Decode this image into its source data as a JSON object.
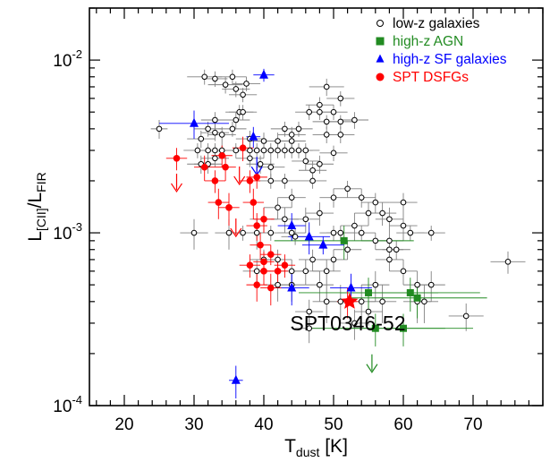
{
  "chart_data": {
    "type": "scatter",
    "xlabel": "T",
    "xlabel_sub": "dust",
    "xlabel_unit": " [K]",
    "ylabel_main": "L",
    "ylabel_sub1": "[CII]",
    "ylabel_mid": "/L",
    "ylabel_sub2": "FIR",
    "xlim": [
      15,
      80
    ],
    "ylim": [
      0.0001,
      0.02
    ],
    "yscale": "log",
    "x_ticks": [
      {
        "value": 20,
        "label": "20"
      },
      {
        "value": 30,
        "label": "30"
      },
      {
        "value": 40,
        "label": "40"
      },
      {
        "value": 50,
        "label": "50"
      },
      {
        "value": 60,
        "label": "60"
      },
      {
        "value": 70,
        "label": "70"
      }
    ],
    "y_ticks": [
      {
        "value": 0.0001,
        "base": "10",
        "exp": "-4"
      },
      {
        "value": 0.001,
        "base": "10",
        "exp": "-3"
      },
      {
        "value": 0.01,
        "base": "10",
        "exp": "-2"
      }
    ],
    "legend_position": "top-right",
    "annotation": {
      "text": "SPT0346-52",
      "x": 52.3,
      "y": 0.0003
    },
    "series": [
      {
        "name": "low-z galaxies",
        "marker": "open-circle",
        "color": "#000000",
        "errcolor": "#808080",
        "points": [
          [
            25,
            0.004,
            1.2,
            0.0005
          ],
          [
            31.5,
            0.008,
            2.5,
            0.0008
          ],
          [
            33,
            0.0078,
            1.8,
            0.0008
          ],
          [
            34.5,
            0.0072,
            2.5,
            0.0008
          ],
          [
            35.5,
            0.008,
            2,
            0.0008
          ],
          [
            36,
            0.0068,
            2,
            0.0007
          ],
          [
            37,
            0.0063,
            2,
            0.0006
          ],
          [
            37.5,
            0.0073,
            2,
            0.0007
          ],
          [
            36.5,
            0.005,
            2,
            0.0005
          ],
          [
            37,
            0.005,
            2,
            0.0005
          ],
          [
            36,
            0.0045,
            2,
            0.0005
          ],
          [
            33,
            0.0045,
            2,
            0.0005
          ],
          [
            35.5,
            0.004,
            2,
            0.0004
          ],
          [
            33,
            0.0038,
            2,
            0.0004
          ],
          [
            34,
            0.0037,
            2,
            0.0004
          ],
          [
            32,
            0.004,
            2,
            0.0004
          ],
          [
            31,
            0.0035,
            2,
            0.0004
          ],
          [
            30.5,
            0.003,
            2,
            0.0003
          ],
          [
            32,
            0.003,
            2,
            0.0003
          ],
          [
            33,
            0.003,
            2,
            0.0003
          ],
          [
            34,
            0.003,
            2,
            0.0003
          ],
          [
            33,
            0.0027,
            2,
            0.0003
          ],
          [
            32,
            0.0025,
            2,
            0.0003
          ],
          [
            31,
            0.0025,
            2,
            0.0003
          ],
          [
            36,
            0.003,
            2,
            0.0003
          ],
          [
            38,
            0.003,
            2,
            0.0003
          ],
          [
            39,
            0.003,
            2,
            0.0003
          ],
          [
            40,
            0.003,
            2,
            0.0003
          ],
          [
            41,
            0.003,
            2,
            0.0003
          ],
          [
            42,
            0.003,
            2,
            0.0003
          ],
          [
            43,
            0.003,
            2,
            0.0003
          ],
          [
            44,
            0.003,
            2,
            0.0003
          ],
          [
            45,
            0.003,
            2,
            0.0003
          ],
          [
            46,
            0.003,
            2,
            0.0003
          ],
          [
            38,
            0.0035,
            2,
            0.0004
          ],
          [
            40,
            0.0034,
            2,
            0.0004
          ],
          [
            42,
            0.0034,
            2,
            0.0004
          ],
          [
            44,
            0.0034,
            2,
            0.0004
          ],
          [
            43,
            0.004,
            2,
            0.0004
          ],
          [
            44,
            0.0037,
            2,
            0.0004
          ],
          [
            45,
            0.004,
            2,
            0.0004
          ],
          [
            46.5,
            0.005,
            2,
            0.0005
          ],
          [
            48,
            0.005,
            2,
            0.0005
          ],
          [
            50,
            0.005,
            2,
            0.0005
          ],
          [
            49,
            0.0044,
            2,
            0.0004
          ],
          [
            51,
            0.0044,
            2,
            0.0004
          ],
          [
            53,
            0.0045,
            2,
            0.0005
          ],
          [
            49,
            0.0037,
            2,
            0.0004
          ],
          [
            51,
            0.0037,
            2,
            0.0004
          ],
          [
            50,
            0.0029,
            2,
            0.0003
          ],
          [
            48,
            0.0025,
            2,
            0.0003
          ],
          [
            47,
            0.0023,
            2,
            0.0003
          ],
          [
            48,
            0.0055,
            2,
            0.0006
          ],
          [
            49,
            0.007,
            2.5,
            0.0008
          ],
          [
            51,
            0.006,
            2,
            0.0006
          ],
          [
            46,
            0.0026,
            2,
            0.0003
          ],
          [
            47,
            0.002,
            2,
            0.0002
          ],
          [
            38,
            0.0027,
            2,
            0.0003
          ],
          [
            39.5,
            0.0025,
            2,
            0.0003
          ],
          [
            41,
            0.0024,
            2,
            0.0003
          ],
          [
            41,
            0.002,
            2,
            0.0002
          ],
          [
            43,
            0.002,
            2,
            0.0002
          ],
          [
            44,
            0.0016,
            2,
            0.0002
          ],
          [
            42,
            0.0014,
            2,
            0.0002
          ],
          [
            40,
            0.0012,
            2,
            0.0002
          ],
          [
            39,
            0.001,
            2,
            0.0002
          ],
          [
            41,
            0.001,
            2,
            0.0001
          ],
          [
            43,
            0.0012,
            2,
            0.0002
          ],
          [
            44,
            0.001,
            2,
            0.0001
          ],
          [
            46,
            0.0012,
            2,
            0.0002
          ],
          [
            48,
            0.0013,
            2,
            0.0002
          ],
          [
            50,
            0.0016,
            2,
            0.0002
          ],
          [
            52,
            0.0018,
            2,
            0.0002
          ],
          [
            54,
            0.0016,
            2,
            0.0002
          ],
          [
            56,
            0.0015,
            2,
            0.0002
          ],
          [
            55,
            0.0013,
            2,
            0.0002
          ],
          [
            57,
            0.0013,
            2,
            0.0002
          ],
          [
            58,
            0.0012,
            2,
            0.0002
          ],
          [
            60,
            0.0011,
            2,
            0.0002
          ],
          [
            61,
            0.001,
            2,
            0.0001
          ],
          [
            53,
            0.0011,
            2,
            0.0002
          ],
          [
            54,
            0.001,
            2,
            0.0001
          ],
          [
            51,
            0.001,
            2,
            0.0001
          ],
          [
            56,
            0.0009,
            2,
            0.0001
          ],
          [
            58,
            0.0008,
            2,
            0.0001
          ],
          [
            59,
            0.0008,
            2,
            0.0001
          ],
          [
            52,
            0.0008,
            2,
            0.0001
          ],
          [
            50,
            0.0007,
            2,
            0.0001
          ],
          [
            49,
            0.0006,
            2,
            0.0001
          ],
          [
            47,
            0.0007,
            2,
            0.0001
          ],
          [
            46,
            0.0006,
            2,
            0.0001
          ],
          [
            48,
            0.0005,
            2,
            0.0001
          ],
          [
            49,
            0.0004,
            2,
            0.0001
          ],
          [
            51,
            0.0004,
            2,
            0.0001
          ],
          [
            54,
            0.0004,
            2,
            0.0001
          ],
          [
            56,
            0.0005,
            2,
            0.0001
          ],
          [
            58,
            0.0007,
            2,
            0.0001
          ],
          [
            60,
            0.0006,
            2,
            0.0001
          ],
          [
            62,
            0.0005,
            2,
            0.0001
          ],
          [
            64,
            0.0005,
            2,
            0.0001
          ],
          [
            63,
            0.0004,
            2,
            0.0001
          ],
          [
            62,
            0.0004,
            2,
            0.0001
          ],
          [
            64,
            0.001,
            2,
            0.0001
          ],
          [
            69,
            0.00033,
            2.5,
            6e-05
          ],
          [
            75,
            0.00068,
            2.5,
            0.0001
          ],
          [
            57,
            0.0004,
            2,
            0.0001
          ],
          [
            55,
            0.00035,
            2,
            6e-05
          ],
          [
            53,
            0.0003,
            2,
            6e-05
          ],
          [
            46.5,
            0.00035,
            2,
            6e-05
          ],
          [
            46.5,
            0.00028,
            2,
            5e-05
          ],
          [
            39,
            0.0006,
            2,
            0.0001
          ],
          [
            40,
            0.0007,
            2,
            0.0001
          ],
          [
            42,
            0.0007,
            2,
            0.0001
          ],
          [
            44,
            0.0006,
            2,
            0.0001
          ],
          [
            30,
            0.001,
            2,
            0.0002
          ],
          [
            35,
            0.001,
            2,
            0.0002
          ],
          [
            37,
            0.001,
            2,
            0.0001
          ],
          [
            44.5,
            0.00095,
            2,
            0.0001
          ],
          [
            42,
            0.0005,
            2,
            0.0001
          ],
          [
            44,
            0.0005,
            2,
            0.0001
          ],
          [
            50,
            0.001,
            2,
            0.0001
          ],
          [
            60,
            0.0015,
            2,
            0.0002
          ],
          [
            58,
            0.0009,
            2,
            0.0001
          ]
        ]
      },
      {
        "name": "high-z AGN",
        "marker": "filled-square",
        "color": "#228b22",
        "errcolor": "#228b22",
        "points": [
          [
            51.5,
            0.0009,
            10,
            0.0002
          ],
          [
            55,
            0.00045,
            10,
            0.0001
          ],
          [
            61,
            0.00045,
            10,
            0.0001
          ],
          [
            62,
            0.00042,
            10,
            0.0001
          ],
          [
            56,
            0.00028,
            10,
            6e-05
          ],
          [
            60,
            0.00028,
            10,
            6e-05
          ]
        ],
        "upper_limits": [
          [
            55.5,
            0.00018
          ]
        ]
      },
      {
        "name": "high-z SF galaxies",
        "marker": "filled-triangle",
        "color": "#0000ff",
        "errcolor": "#0000ff",
        "points": [
          [
            30,
            0.0043,
            5,
            0.0008
          ],
          [
            40,
            0.0082,
            1.5,
            0.0007
          ],
          [
            38.5,
            0.0036,
            1,
            0.0005
          ],
          [
            44,
            0.0011,
            2,
            0.0002
          ],
          [
            46.5,
            0.00095,
            3,
            0.0002
          ],
          [
            48.5,
            0.00085,
            3,
            0.0001
          ],
          [
            44,
            0.00048,
            2.5,
            0.0001
          ],
          [
            52.5,
            0.00048,
            3,
            0.0001
          ],
          [
            36,
            0.00014,
            1,
            3e-05
          ]
        ],
        "upper_limits": [
          [
            39,
            0.0025
          ]
        ]
      },
      {
        "name": "SPT DSFGs",
        "marker": "filled-circle",
        "color": "#ff0000",
        "errcolor": "#ff0000",
        "points": [
          [
            27.5,
            0.0027,
            1.5,
            0.0004
          ],
          [
            31.5,
            0.0024,
            1.5,
            0.0004
          ],
          [
            33,
            0.002,
            1.5,
            0.0003
          ],
          [
            34,
            0.0028,
            1.5,
            0.0004
          ],
          [
            34.5,
            0.0024,
            1.5,
            0.0004
          ],
          [
            33.5,
            0.0015,
            1.5,
            0.0003
          ],
          [
            35,
            0.0014,
            1.5,
            0.0003
          ],
          [
            37,
            0.0031,
            1.5,
            0.0005
          ],
          [
            38,
            0.002,
            1.5,
            0.0003
          ],
          [
            39,
            0.0021,
            1.5,
            0.0003
          ],
          [
            38.5,
            0.0015,
            1.5,
            0.0003
          ],
          [
            39,
            0.0011,
            1.5,
            0.0002
          ],
          [
            40,
            0.0012,
            1.5,
            0.0002
          ],
          [
            39.5,
            0.00085,
            1.5,
            0.00015
          ],
          [
            40,
            0.00068,
            1.5,
            0.0001
          ],
          [
            38,
            0.00065,
            1.5,
            0.0001
          ],
          [
            41,
            0.00075,
            1.5,
            0.0001
          ],
          [
            40,
            0.0006,
            1.5,
            0.0001
          ],
          [
            42,
            0.0006,
            1.5,
            0.0001
          ],
          [
            41,
            0.00048,
            1.5,
            0.0001
          ],
          [
            43,
            0.00065,
            1.5,
            0.0001
          ],
          [
            39,
            0.0005,
            1.5,
            0.0001
          ],
          [
            52,
            0.0004,
            1.5,
            8e-05
          ]
        ],
        "upper_limits": [
          [
            27.5,
            0.002
          ],
          [
            36.5,
            0.0022
          ],
          [
            36,
            0.0011
          ]
        ]
      }
    ],
    "highlight": {
      "name": "SPT0346-52",
      "x": 52.3,
      "y": 0.0004,
      "marker": "star",
      "color": "#ff0000"
    }
  }
}
